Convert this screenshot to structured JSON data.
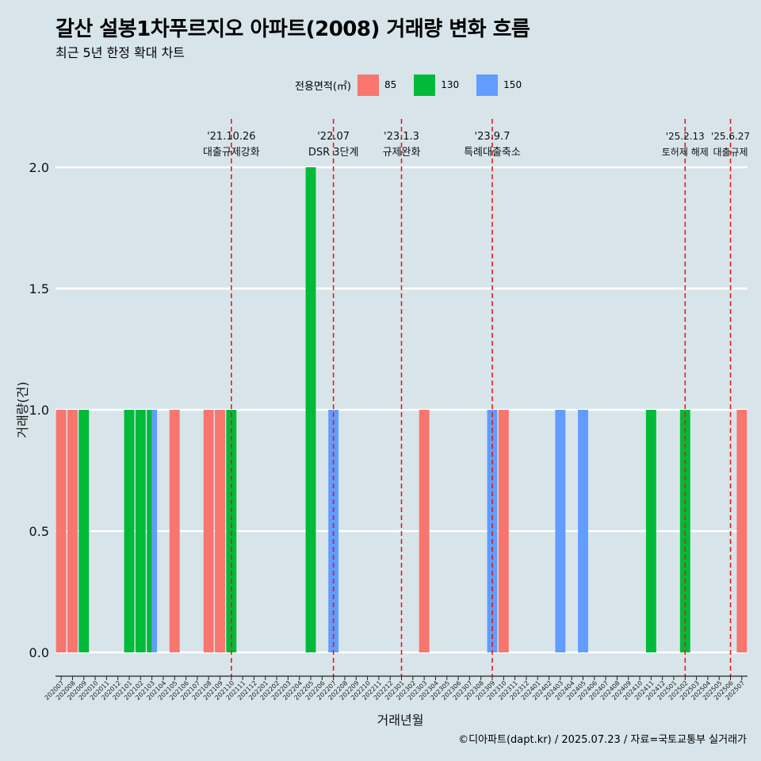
{
  "chart_data": {
    "type": "bar",
    "title": "갈산 설봉1차푸르지오 아파트(2008) 거래량 변화 흐름",
    "subtitle": "최근 5년 한정 확대 차트",
    "xlabel": "거래년월",
    "ylabel": "거래량(건)",
    "ylim": [
      0,
      2
    ],
    "yticks": [
      "0.0",
      "0.5",
      "1.0",
      "1.5",
      "2.0"
    ],
    "grid": true,
    "legend": {
      "title": "전용면적(㎡)",
      "position": "top"
    },
    "categories": [
      "202007",
      "202008",
      "202009",
      "202010",
      "202011",
      "202012",
      "202101",
      "202102",
      "202103",
      "202104",
      "202105",
      "202106",
      "202107",
      "202108",
      "202109",
      "202110",
      "202111",
      "202112",
      "202201",
      "202202",
      "202203",
      "202204",
      "202205",
      "202206",
      "202207",
      "202208",
      "202209",
      "202210",
      "202211",
      "202212",
      "202301",
      "202302",
      "202303",
      "202304",
      "202305",
      "202306",
      "202307",
      "202308",
      "202309",
      "202310",
      "202311",
      "202312",
      "202401",
      "202402",
      "202403",
      "202404",
      "202405",
      "202406",
      "202407",
      "202408",
      "202409",
      "202410",
      "202411",
      "202412",
      "202501",
      "202502",
      "202503",
      "202504",
      "202505",
      "202506",
      "202507"
    ],
    "series": [
      {
        "name": "85",
        "color": "#f8766d",
        "values": [
          {
            "x": "202007",
            "y": 1
          },
          {
            "x": "202008",
            "y": 1
          },
          {
            "x": "202105",
            "y": 1
          },
          {
            "x": "202108",
            "y": 1
          },
          {
            "x": "202109",
            "y": 1
          },
          {
            "x": "202303",
            "y": 1
          },
          {
            "x": "202310",
            "y": 1
          },
          {
            "x": "202507",
            "y": 1
          }
        ]
      },
      {
        "name": "130",
        "color": "#00ba38",
        "values": [
          {
            "x": "202009",
            "y": 1
          },
          {
            "x": "202101",
            "y": 1
          },
          {
            "x": "202102",
            "y": 1
          },
          {
            "x": "202103",
            "y": 1
          },
          {
            "x": "202110",
            "y": 1
          },
          {
            "x": "202205",
            "y": 2
          },
          {
            "x": "202411",
            "y": 1
          },
          {
            "x": "202502",
            "y": 1
          }
        ]
      },
      {
        "name": "150",
        "color": "#619cff",
        "values": [
          {
            "x": "202103",
            "y": 1
          },
          {
            "x": "202207",
            "y": 1
          },
          {
            "x": "202309",
            "y": 1
          },
          {
            "x": "202403",
            "y": 1
          },
          {
            "x": "202405",
            "y": 1
          }
        ]
      }
    ],
    "annotations": [
      {
        "at": "202110",
        "date": "'21.10.26",
        "label": "대출규제강화"
      },
      {
        "at": "202207",
        "date": "'22.07",
        "label": "DSR 3단계"
      },
      {
        "at": "202301",
        "date": "'23.1.3",
        "label": "규제완화"
      },
      {
        "at": "202309",
        "date": "'23.9.7",
        "label": "특례대출축소"
      },
      {
        "at": "202502",
        "date": "'25.2.13",
        "label": "토허제 해제"
      },
      {
        "at": "202506",
        "date": "'25.6.27",
        "label": "대출규제"
      }
    ]
  },
  "caption": "©디아파트(dapt.kr) / 2025.07.23 / 자료=국토교통부 실거래가"
}
